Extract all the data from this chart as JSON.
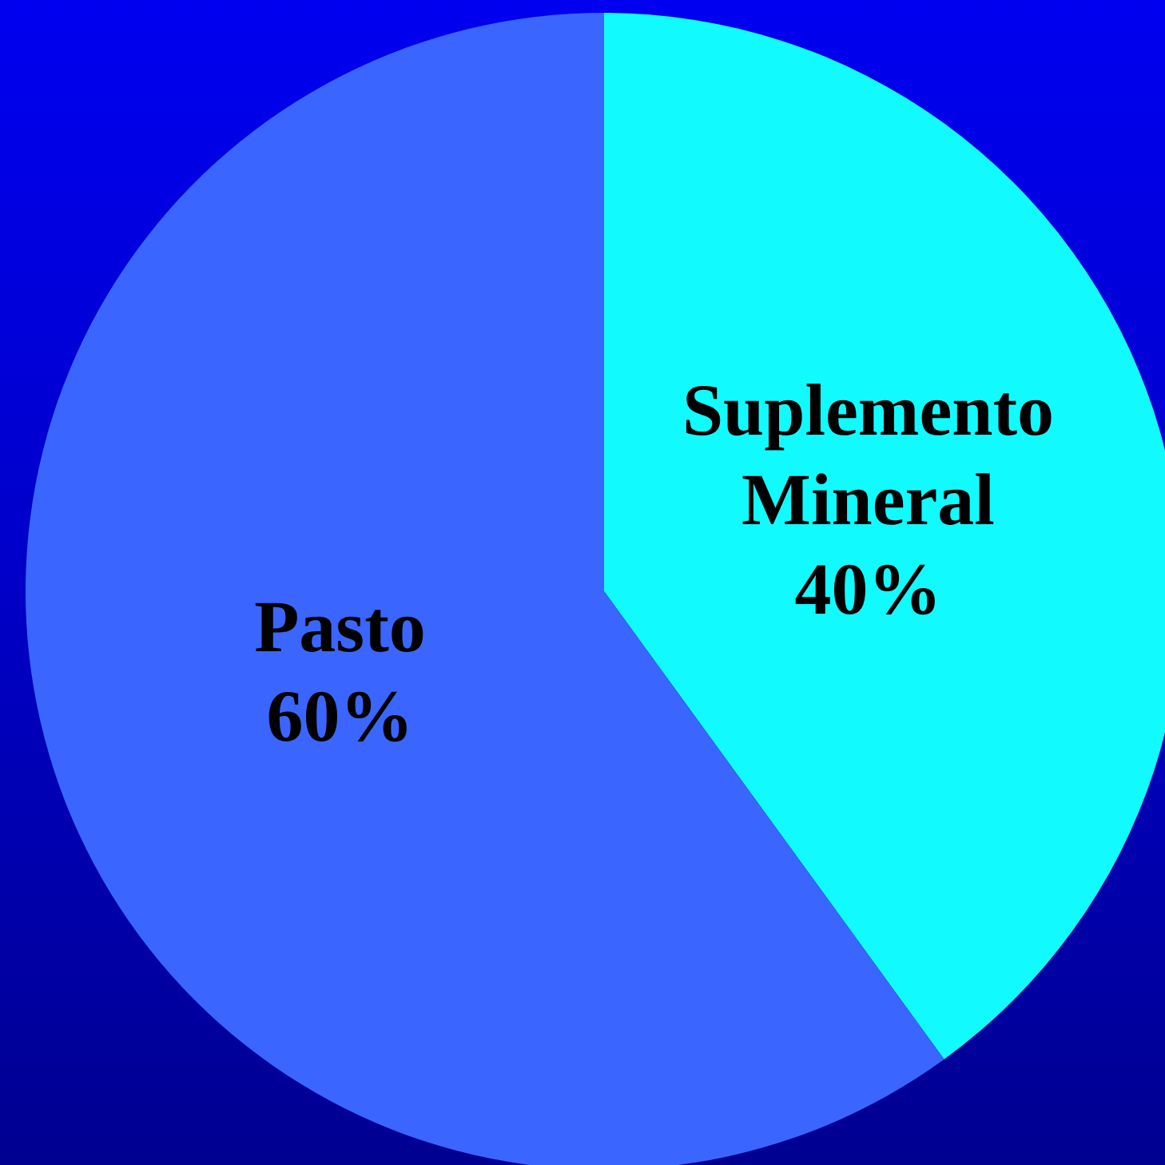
{
  "chart_data": {
    "type": "pie",
    "categories": [
      "Suplemento Mineral",
      "Pasto"
    ],
    "values": [
      40,
      60
    ],
    "colors": [
      "#11fbff",
      "#3a66ff"
    ],
    "value_labels": [
      "40%",
      "60%"
    ],
    "legend": false
  }
}
